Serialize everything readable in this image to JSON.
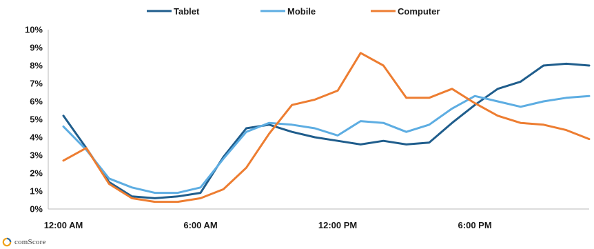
{
  "brand": {
    "name": "comScore",
    "icon": "comscore-logo-icon"
  },
  "colors": {
    "axis": "#b8b8b8",
    "text": "#1a1a1a"
  },
  "chart_data": {
    "type": "line",
    "title": "",
    "xlabel": "",
    "ylabel": "",
    "ylim": [
      0,
      10
    ],
    "y_ticks": [
      "0%",
      "1%",
      "2%",
      "3%",
      "4%",
      "5%",
      "6%",
      "7%",
      "8%",
      "9%",
      "10%"
    ],
    "x_tick_labels": [
      "12:00 AM",
      "6:00 AM",
      "12:00 PM",
      "6:00 PM"
    ],
    "x_tick_hours": [
      0,
      6,
      12,
      18
    ],
    "x_hours": [
      0,
      1,
      2,
      3,
      4,
      5,
      6,
      7,
      8,
      9,
      10,
      11,
      12,
      13,
      14,
      15,
      16,
      17,
      18,
      19,
      20,
      21,
      22,
      23
    ],
    "grid": false,
    "legend_position": "top",
    "series": [
      {
        "name": "Tablet",
        "color": "#1f5d8c",
        "values": [
          5.2,
          3.4,
          1.5,
          0.7,
          0.6,
          0.7,
          0.9,
          2.9,
          4.5,
          4.7,
          4.3,
          4.0,
          3.8,
          3.6,
          3.8,
          3.6,
          3.7,
          4.8,
          5.8,
          6.7,
          7.1,
          8.0,
          8.1,
          8.0
        ]
      },
      {
        "name": "Mobile",
        "color": "#5dade2",
        "values": [
          4.6,
          3.3,
          1.7,
          1.2,
          0.9,
          0.9,
          1.2,
          2.8,
          4.3,
          4.8,
          4.7,
          4.5,
          4.1,
          4.9,
          4.8,
          4.3,
          4.7,
          5.6,
          6.3,
          6.0,
          5.7,
          6.0,
          6.2,
          6.3
        ]
      },
      {
        "name": "Computer",
        "color": "#ed7d31",
        "values": [
          2.7,
          3.4,
          1.4,
          0.6,
          0.4,
          0.4,
          0.6,
          1.1,
          2.3,
          4.2,
          5.8,
          6.1,
          6.6,
          8.7,
          8.0,
          6.2,
          6.2,
          6.7,
          5.9,
          5.2,
          4.8,
          4.7,
          4.4,
          3.9
        ]
      }
    ]
  }
}
